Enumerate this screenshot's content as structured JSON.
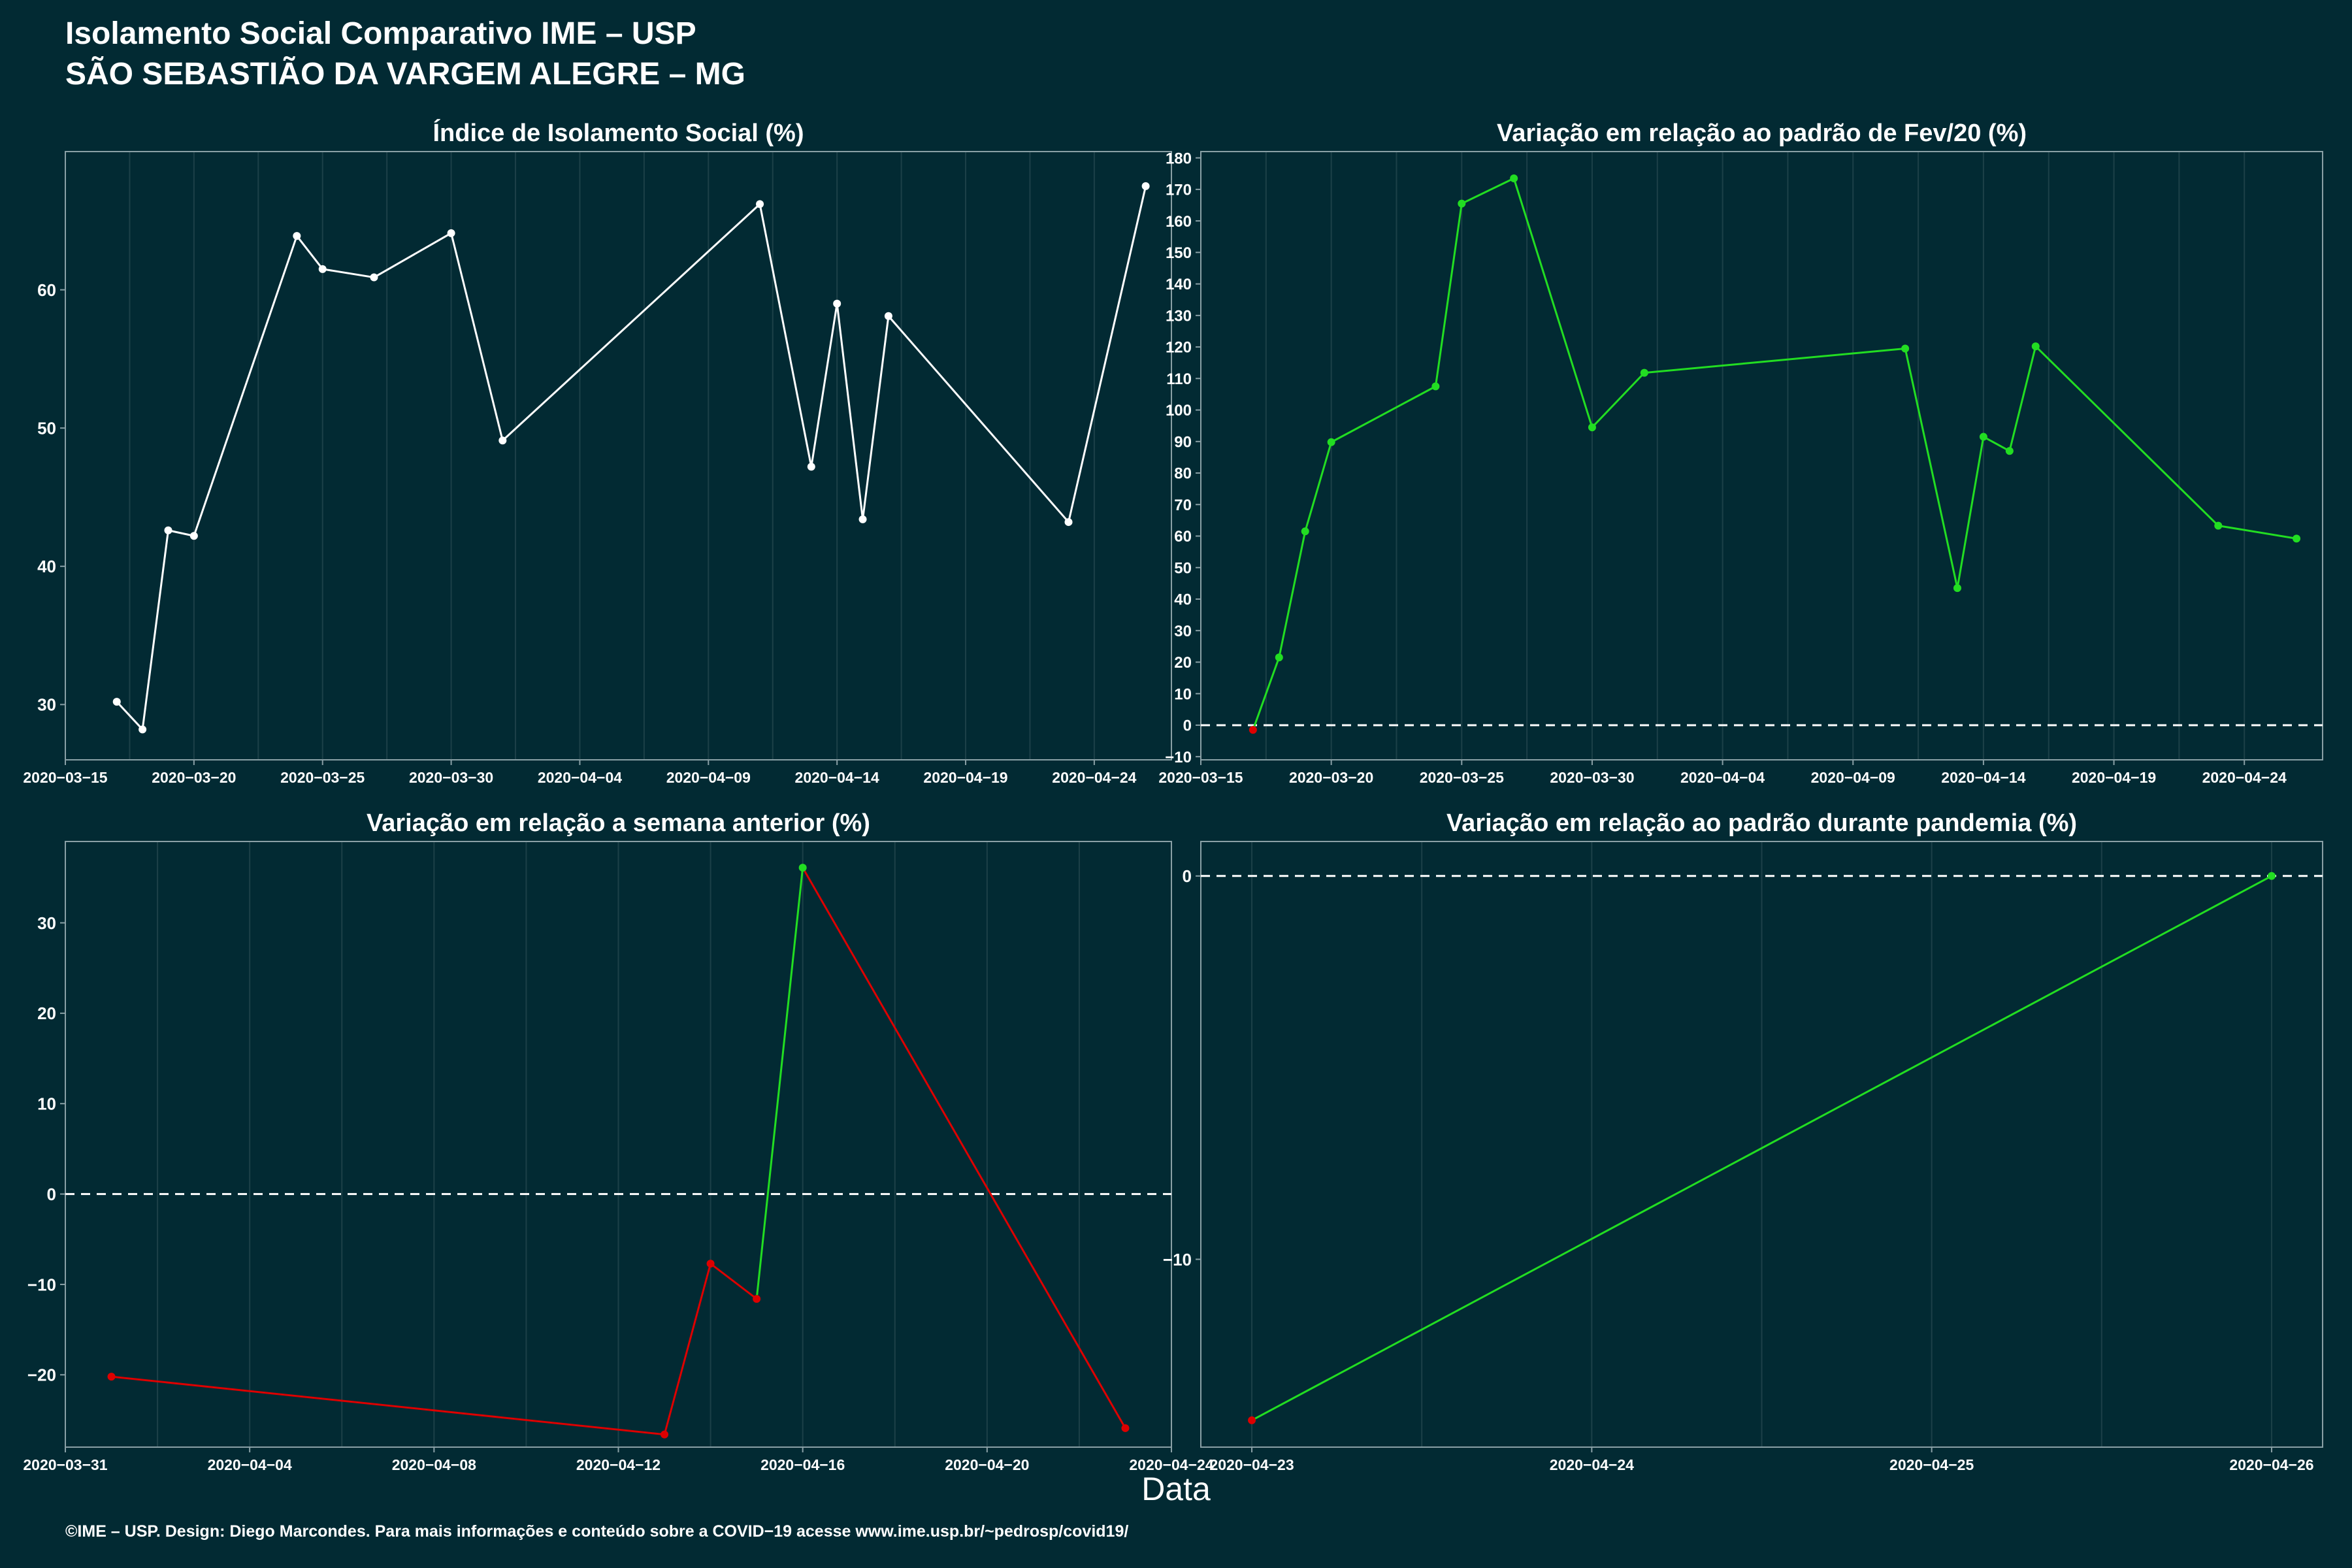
{
  "header": {
    "title_line1": "Isolamento Social Comparativo IME – USP",
    "title_line2": "SÃO SEBASTIÃO DA VARGEM ALEGRE – MG"
  },
  "xlabel": "Data",
  "footer": "©IME – USP. Design: Diego Marcondes. Para mais informações e conteúdo sobre a COVID−19 acesse www.ime.usp.br/~pedrosp/covid19/",
  "colors": {
    "background": "#022a33",
    "line": "#ffffff",
    "positive": "#22dd22",
    "negative": "#dd0000",
    "grid": "#1c4048",
    "axis": "#8aa0a6"
  },
  "chart_data": [
    {
      "type": "line",
      "title": "Índice de Isolamento Social (%)",
      "xlabel": "Data",
      "ylabel": "",
      "x_ticks": [
        "2020-03-15",
        "2020-03-20",
        "2020-03-25",
        "2020-03-30",
        "2020-04-04",
        "2020-04-09",
        "2020-04-14",
        "2020-04-19",
        "2020-04-24"
      ],
      "y_ticks": [
        30,
        40,
        50,
        60
      ],
      "xlim": [
        "2020-03-15",
        "2020-04-27"
      ],
      "ylim": [
        26,
        70
      ],
      "grid": true,
      "series": [
        {
          "x": [
            "2020-03-17",
            "2020-03-18",
            "2020-03-19",
            "2020-03-20",
            "2020-03-24",
            "2020-03-25",
            "2020-03-27",
            "2020-03-30",
            "2020-04-01",
            "2020-04-11",
            "2020-04-13",
            "2020-04-14",
            "2020-04-15",
            "2020-04-16",
            "2020-04-23",
            "2020-04-26"
          ],
          "values": [
            30.2,
            28.2,
            42.6,
            42.2,
            63.9,
            61.5,
            60.9,
            64.1,
            49.1,
            66.2,
            47.2,
            59.0,
            43.4,
            58.1,
            43.2,
            67.5
          ],
          "colors": [
            "white",
            "white",
            "white",
            "white",
            "white",
            "white",
            "white",
            "white",
            "white",
            "white",
            "white",
            "white",
            "white",
            "white",
            "white",
            "white"
          ]
        }
      ]
    },
    {
      "type": "line",
      "title": "Variação em relação ao padrão de Fev/20 (%)",
      "xlabel": "Data",
      "ylabel": "",
      "x_ticks": [
        "2020-03-15",
        "2020-03-20",
        "2020-03-25",
        "2020-03-30",
        "2020-04-04",
        "2020-04-09",
        "2020-04-14",
        "2020-04-19",
        "2020-04-24"
      ],
      "y_ticks": [
        -10,
        0,
        10,
        20,
        30,
        40,
        50,
        60,
        70,
        80,
        90,
        100,
        110,
        120,
        130,
        140,
        150,
        160,
        170,
        180
      ],
      "xlim": [
        "2020-03-15",
        "2020-04-27"
      ],
      "ylim": [
        -11,
        182
      ],
      "reference_line": 0,
      "grid": true,
      "series": [
        {
          "x": [
            "2020-03-17",
            "2020-03-18",
            "2020-03-19",
            "2020-03-20",
            "2020-03-24",
            "2020-03-25",
            "2020-03-27",
            "2020-03-30",
            "2020-04-01",
            "2020-04-11",
            "2020-04-13",
            "2020-04-14",
            "2020-04-15",
            "2020-04-16",
            "2020-04-23",
            "2020-04-26"
          ],
          "values": [
            -1.5,
            21.5,
            61.5,
            89.8,
            107.5,
            165.5,
            173.5,
            94.5,
            111.8,
            119.5,
            43.5,
            91.5,
            87.0,
            120.2,
            63.3,
            59.2
          ],
          "colors": [
            "red",
            "green",
            "green",
            "green",
            "green",
            "green",
            "green",
            "green",
            "green",
            "green",
            "green",
            "green",
            "green",
            "green",
            "green",
            "green"
          ]
        }
      ]
    },
    {
      "type": "line",
      "title": "Variação em relação a semana anterior (%)",
      "xlabel": "Data",
      "ylabel": "",
      "x_ticks": [
        "2020-03-31",
        "2020-04-04",
        "2020-04-08",
        "2020-04-12",
        "2020-04-16",
        "2020-04-20",
        "2020-04-24"
      ],
      "y_ticks": [
        -20,
        -10,
        0,
        10,
        20,
        30
      ],
      "xlim": [
        "2020-03-31",
        "2020-04-24"
      ],
      "ylim": [
        -28,
        39
      ],
      "reference_line": 0,
      "grid": true,
      "series": [
        {
          "x": [
            "2020-04-01",
            "2020-04-13",
            "2020-04-14",
            "2020-04-15",
            "2020-04-16",
            "2020-04-23"
          ],
          "values": [
            -20.2,
            -26.6,
            -7.7,
            -11.6,
            36.1,
            -25.9
          ],
          "colors": [
            "red",
            "red",
            "red",
            "red",
            "green",
            "red"
          ]
        }
      ]
    },
    {
      "type": "line",
      "title": "Variação em relação ao padrão durante pandemia (%)",
      "xlabel": "Data",
      "ylabel": "",
      "x_ticks": [
        "2020-04-23",
        "2020-04-24",
        "2020-04-25",
        "2020-04-26"
      ],
      "y_ticks": [
        -10,
        0
      ],
      "xlim": [
        "2020-04-22.85",
        "2020-04-26.15"
      ],
      "ylim": [
        -14.9,
        0.9
      ],
      "reference_line": 0,
      "grid": true,
      "series": [
        {
          "x": [
            "2020-04-23",
            "2020-04-26"
          ],
          "values": [
            -14.2,
            0.0
          ],
          "colors": [
            "red",
            "green"
          ]
        }
      ]
    }
  ]
}
